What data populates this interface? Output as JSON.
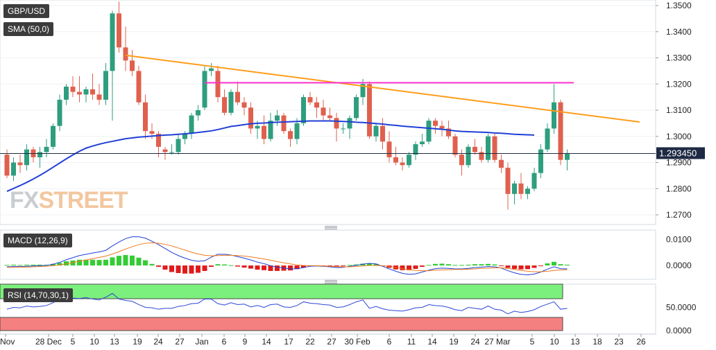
{
  "panels": {
    "price": {
      "title": "GBP/USD",
      "indicator": "SMA (50,0)"
    },
    "macd": {
      "title": "MACD (12,26,9)"
    },
    "rsi": {
      "title": "RSI (14,70,30,1)"
    }
  },
  "watermark": {
    "part1": "FX",
    "part2": "STREET"
  },
  "colors": {
    "bull": "#2e9e7e",
    "bear": "#e0604e",
    "sma": "#1f3fd6",
    "trendline": "#ff9c1a",
    "resistance": "#ff33cc",
    "macd_line": "#1f3fd6",
    "signal_line": "#f07a1a",
    "hist_pos": "#33cc33",
    "hist_neg": "#e01b1b",
    "rsi_line": "#2a45d8",
    "rsi_overbought": "#7cf07c",
    "rsi_oversold": "#f58080"
  },
  "chart_data": {
    "type": "candlestick",
    "price_axis": {
      "ticks": [
        "1.3500",
        "1.3400",
        "1.3300",
        "1.3200",
        "1.3100",
        "1.3000",
        "1.2900",
        "1.2800",
        "1.2700"
      ],
      "min": 1.267,
      "max": 1.3505
    },
    "current_price": "1.293450",
    "x_ticks": [
      "Nov",
      "28 Dec",
      "5",
      "10",
      "13",
      "19",
      "24",
      "27",
      "Jan",
      "6",
      "9",
      "14",
      "17",
      "22",
      "27",
      "30 Feb",
      "6",
      "11",
      "14",
      "19",
      "24",
      "27 Mar",
      "5",
      "10",
      "13",
      "18",
      "23",
      "26"
    ],
    "candles": [
      [
        1.293,
        1.295,
        1.284,
        1.285
      ],
      [
        1.285,
        1.292,
        1.283,
        1.29
      ],
      [
        1.29,
        1.293,
        1.286,
        1.289
      ],
      [
        1.289,
        1.297,
        1.287,
        1.295
      ],
      [
        1.295,
        1.296,
        1.29,
        1.292
      ],
      [
        1.292,
        1.296,
        1.288,
        1.294
      ],
      [
        1.294,
        1.299,
        1.292,
        1.296
      ],
      [
        1.296,
        1.305,
        1.295,
        1.304
      ],
      [
        1.304,
        1.316,
        1.302,
        1.314
      ],
      [
        1.314,
        1.32,
        1.312,
        1.319
      ],
      [
        1.319,
        1.323,
        1.315,
        1.317
      ],
      [
        1.317,
        1.323,
        1.313,
        1.316
      ],
      [
        1.316,
        1.319,
        1.313,
        1.318
      ],
      [
        1.318,
        1.324,
        1.314,
        1.316
      ],
      [
        1.316,
        1.32,
        1.312,
        1.314
      ],
      [
        1.314,
        1.328,
        1.312,
        1.325
      ],
      [
        1.325,
        1.348,
        1.306,
        1.347
      ],
      [
        1.347,
        1.3515,
        1.332,
        1.334
      ],
      [
        1.334,
        1.342,
        1.325,
        1.329
      ],
      [
        1.329,
        1.333,
        1.323,
        1.325
      ],
      [
        1.325,
        1.327,
        1.312,
        1.313
      ],
      [
        1.313,
        1.316,
        1.299,
        1.302
      ],
      [
        1.302,
        1.305,
        1.299,
        1.301
      ],
      [
        1.301,
        1.302,
        1.292,
        1.296
      ],
      [
        1.295,
        1.296,
        1.291,
        1.294
      ],
      [
        1.294,
        1.297,
        1.293,
        1.294
      ],
      [
        1.294,
        1.301,
        1.293,
        1.299
      ],
      [
        1.299,
        1.302,
        1.297,
        1.301
      ],
      [
        1.301,
        1.309,
        1.299,
        1.308
      ],
      [
        1.308,
        1.312,
        1.306,
        1.31
      ],
      [
        1.311,
        1.327,
        1.31,
        1.325
      ],
      [
        1.325,
        1.328,
        1.323,
        1.326
      ],
      [
        1.325,
        1.327,
        1.313,
        1.315
      ],
      [
        1.315,
        1.318,
        1.308,
        1.309
      ],
      [
        1.309,
        1.318,
        1.308,
        1.317
      ],
      [
        1.317,
        1.321,
        1.312,
        1.313
      ],
      [
        1.313,
        1.315,
        1.308,
        1.311
      ],
      [
        1.311,
        1.313,
        1.301,
        1.303
      ],
      [
        1.303,
        1.306,
        1.299,
        1.304
      ],
      [
        1.304,
        1.308,
        1.297,
        1.299
      ],
      [
        1.299,
        1.309,
        1.298,
        1.306
      ],
      [
        1.306,
        1.31,
        1.304,
        1.308
      ],
      [
        1.308,
        1.309,
        1.301,
        1.302
      ],
      [
        1.302,
        1.303,
        1.296,
        1.299
      ],
      [
        1.299,
        1.307,
        1.297,
        1.305
      ],
      [
        1.305,
        1.316,
        1.304,
        1.315
      ],
      [
        1.315,
        1.317,
        1.312,
        1.313
      ],
      [
        1.313,
        1.315,
        1.307,
        1.311
      ],
      [
        1.311,
        1.314,
        1.306,
        1.308
      ],
      [
        1.308,
        1.311,
        1.306,
        1.307
      ],
      [
        1.307,
        1.309,
        1.298,
        1.303
      ],
      [
        1.303,
        1.305,
        1.301,
        1.303
      ],
      [
        1.303,
        1.308,
        1.299,
        1.307
      ],
      [
        1.307,
        1.316,
        1.306,
        1.315
      ],
      [
        1.315,
        1.322,
        1.312,
        1.32
      ],
      [
        1.32,
        1.321,
        1.299,
        1.3
      ],
      [
        1.3,
        1.305,
        1.298,
        1.304
      ],
      [
        1.304,
        1.307,
        1.295,
        1.298
      ],
      [
        1.298,
        1.302,
        1.29,
        1.292
      ],
      [
        1.292,
        1.296,
        1.289,
        1.29
      ],
      [
        1.29,
        1.292,
        1.287,
        1.289
      ],
      [
        1.289,
        1.294,
        1.288,
        1.293
      ],
      [
        1.293,
        1.298,
        1.291,
        1.297
      ],
      [
        1.297,
        1.301,
        1.296,
        1.298
      ],
      [
        1.298,
        1.307,
        1.297,
        1.306
      ],
      [
        1.306,
        1.307,
        1.301,
        1.304
      ],
      [
        1.304,
        1.306,
        1.3,
        1.303
      ],
      [
        1.303,
        1.306,
        1.299,
        1.3
      ],
      [
        1.3,
        1.301,
        1.292,
        1.293
      ],
      [
        1.293,
        1.295,
        1.285,
        1.289
      ],
      [
        1.289,
        1.297,
        1.288,
        1.296
      ],
      [
        1.296,
        1.299,
        1.293,
        1.294
      ],
      [
        1.294,
        1.296,
        1.29,
        1.291
      ],
      [
        1.291,
        1.301,
        1.29,
        1.3
      ],
      [
        1.3,
        1.301,
        1.29,
        1.291
      ],
      [
        1.291,
        1.293,
        1.286,
        1.288
      ],
      [
        1.288,
        1.29,
        1.272,
        1.278
      ],
      [
        1.278,
        1.283,
        1.274,
        1.282
      ],
      [
        1.282,
        1.286,
        1.276,
        1.278
      ],
      [
        1.278,
        1.281,
        1.276,
        1.28
      ],
      [
        1.28,
        1.288,
        1.279,
        1.286
      ],
      [
        1.286,
        1.297,
        1.284,
        1.295
      ],
      [
        1.295,
        1.305,
        1.294,
        1.303
      ],
      [
        1.303,
        1.32,
        1.301,
        1.313
      ],
      [
        1.313,
        1.314,
        1.289,
        1.291
      ],
      [
        1.291,
        1.295,
        1.287,
        1.2935
      ]
    ],
    "sma50": [
      1.279,
      1.2801,
      1.2812,
      1.2824,
      1.2837,
      1.2851,
      1.2866,
      1.2882,
      1.2898,
      1.2914,
      1.2929,
      1.2943,
      1.2955,
      1.2963,
      1.297,
      1.2976,
      1.2981,
      1.2986,
      1.2991,
      1.2994,
      1.2997,
      1.2999,
      1.3001,
      1.3003,
      1.3005,
      1.3006,
      1.3008,
      1.301,
      1.3012,
      1.3015,
      1.3018,
      1.3021,
      1.3026,
      1.3032,
      1.3038,
      1.3041,
      1.3045,
      1.3048,
      1.305,
      1.3051,
      1.3053,
      1.3054,
      1.3055,
      1.3056,
      1.3057,
      1.3058,
      1.3059,
      1.3059,
      1.3059,
      1.3059,
      1.3058,
      1.3057,
      1.3056,
      1.3054,
      1.3053,
      1.3051,
      1.3049,
      1.3047,
      1.3044,
      1.3042,
      1.3039,
      1.3037,
      1.3035,
      1.3033,
      1.3031,
      1.3029,
      1.3027,
      1.3024,
      1.3021,
      1.3019,
      1.3018,
      1.3017,
      1.3016,
      1.3015,
      1.3013,
      1.3012,
      1.301,
      1.3008,
      1.3007,
      1.3006,
      1.3005
    ],
    "trendline": {
      "start_bar": 18,
      "start_price": 1.331,
      "end_bar": 96,
      "end_price": 1.3055
    },
    "resistance": {
      "start_bar": 30,
      "end_bar": 86,
      "price": 1.3205
    },
    "macd": {
      "axis_ticks": [
        "0.0100",
        "0.0000"
      ],
      "min": -0.0045,
      "max": 0.0125,
      "line": [
        -0.0005,
        -0.0004,
        -0.0004,
        -0.0003,
        -0.0002,
        -0.0001,
        0.0,
        0.0005,
        0.0012,
        0.0022,
        0.003,
        0.0038,
        0.0043,
        0.0048,
        0.0052,
        0.0058,
        0.0075,
        0.009,
        0.0103,
        0.011,
        0.011,
        0.0105,
        0.0093,
        0.008,
        0.0065,
        0.005,
        0.0038,
        0.0028,
        0.002,
        0.0016,
        0.0018,
        0.0032,
        0.0043,
        0.0043,
        0.004,
        0.0034,
        0.0028,
        0.0021,
        0.0013,
        0.0007,
        -0.0001,
        -0.0006,
        -0.001,
        -0.0013,
        -0.0012,
        -0.0008,
        -0.0003,
        -0.0002,
        -0.0003,
        -0.0005,
        -0.0008,
        -0.0007,
        -0.0003,
        0.0,
        0.0005,
        0.0008,
        0.0006,
        -0.0003,
        -0.0013,
        -0.0022,
        -0.003,
        -0.0034,
        -0.0032,
        -0.0025,
        -0.0018,
        -0.0012,
        -0.001,
        -0.0011,
        -0.0013,
        -0.0013,
        -0.0011,
        -0.0008,
        -0.0006,
        -0.0004,
        -0.0005,
        -0.001,
        -0.002,
        -0.0028,
        -0.0034,
        -0.0036,
        -0.0033,
        -0.0025,
        -0.0014,
        -0.0005,
        -0.0012,
        -0.0013
      ],
      "signal": [
        -0.0007,
        -0.0007,
        -0.0006,
        -0.0006,
        -0.0005,
        -0.0004,
        -0.0003,
        -0.0001,
        0.0002,
        0.0006,
        0.0011,
        0.0016,
        0.0021,
        0.0026,
        0.0031,
        0.0036,
        0.0044,
        0.0053,
        0.0063,
        0.0072,
        0.008,
        0.0085,
        0.0087,
        0.0085,
        0.0081,
        0.0075,
        0.0067,
        0.0059,
        0.0051,
        0.0044,
        0.0039,
        0.0037,
        0.0038,
        0.0039,
        0.0039,
        0.0038,
        0.0036,
        0.0033,
        0.0029,
        0.0025,
        0.002,
        0.0015,
        0.001,
        0.0006,
        0.0002,
        0.0,
        -0.0001,
        -0.0001,
        -0.0002,
        -0.0003,
        -0.0004,
        -0.0005,
        -0.0005,
        -0.0004,
        -0.0002,
        0.0,
        0.0,
        -0.0001,
        -0.0004,
        -0.0007,
        -0.0012,
        -0.0016,
        -0.0019,
        -0.002,
        -0.002,
        -0.0018,
        -0.0017,
        -0.0016,
        -0.0015,
        -0.0015,
        -0.0014,
        -0.0013,
        -0.0011,
        -0.001,
        -0.0009,
        -0.0009,
        -0.0011,
        -0.0015,
        -0.0019,
        -0.0022,
        -0.0024,
        -0.0024,
        -0.0022,
        -0.0019,
        -0.0017,
        -0.0016
      ]
    },
    "rsi": {
      "axis_ticks": [
        "50.0000",
        "0.0000"
      ],
      "overbought": 70,
      "oversold": 30,
      "min": 0,
      "max": 100,
      "values": [
        46,
        50,
        49,
        53,
        51,
        52,
        54,
        60,
        68,
        72,
        70,
        69,
        71,
        68,
        66,
        72,
        80,
        68,
        65,
        63,
        56,
        50,
        49,
        46,
        48,
        48,
        52,
        54,
        58,
        59,
        68,
        68,
        58,
        55,
        60,
        56,
        57,
        51,
        54,
        50,
        56,
        57,
        51,
        50,
        54,
        62,
        59,
        58,
        56,
        55,
        50,
        51,
        56,
        62,
        66,
        48,
        52,
        47,
        44,
        43,
        42,
        45,
        49,
        50,
        56,
        54,
        53,
        50,
        45,
        43,
        50,
        48,
        46,
        53,
        46,
        44,
        36,
        42,
        39,
        41,
        45,
        52,
        57,
        62,
        46,
        48
      ]
    }
  }
}
